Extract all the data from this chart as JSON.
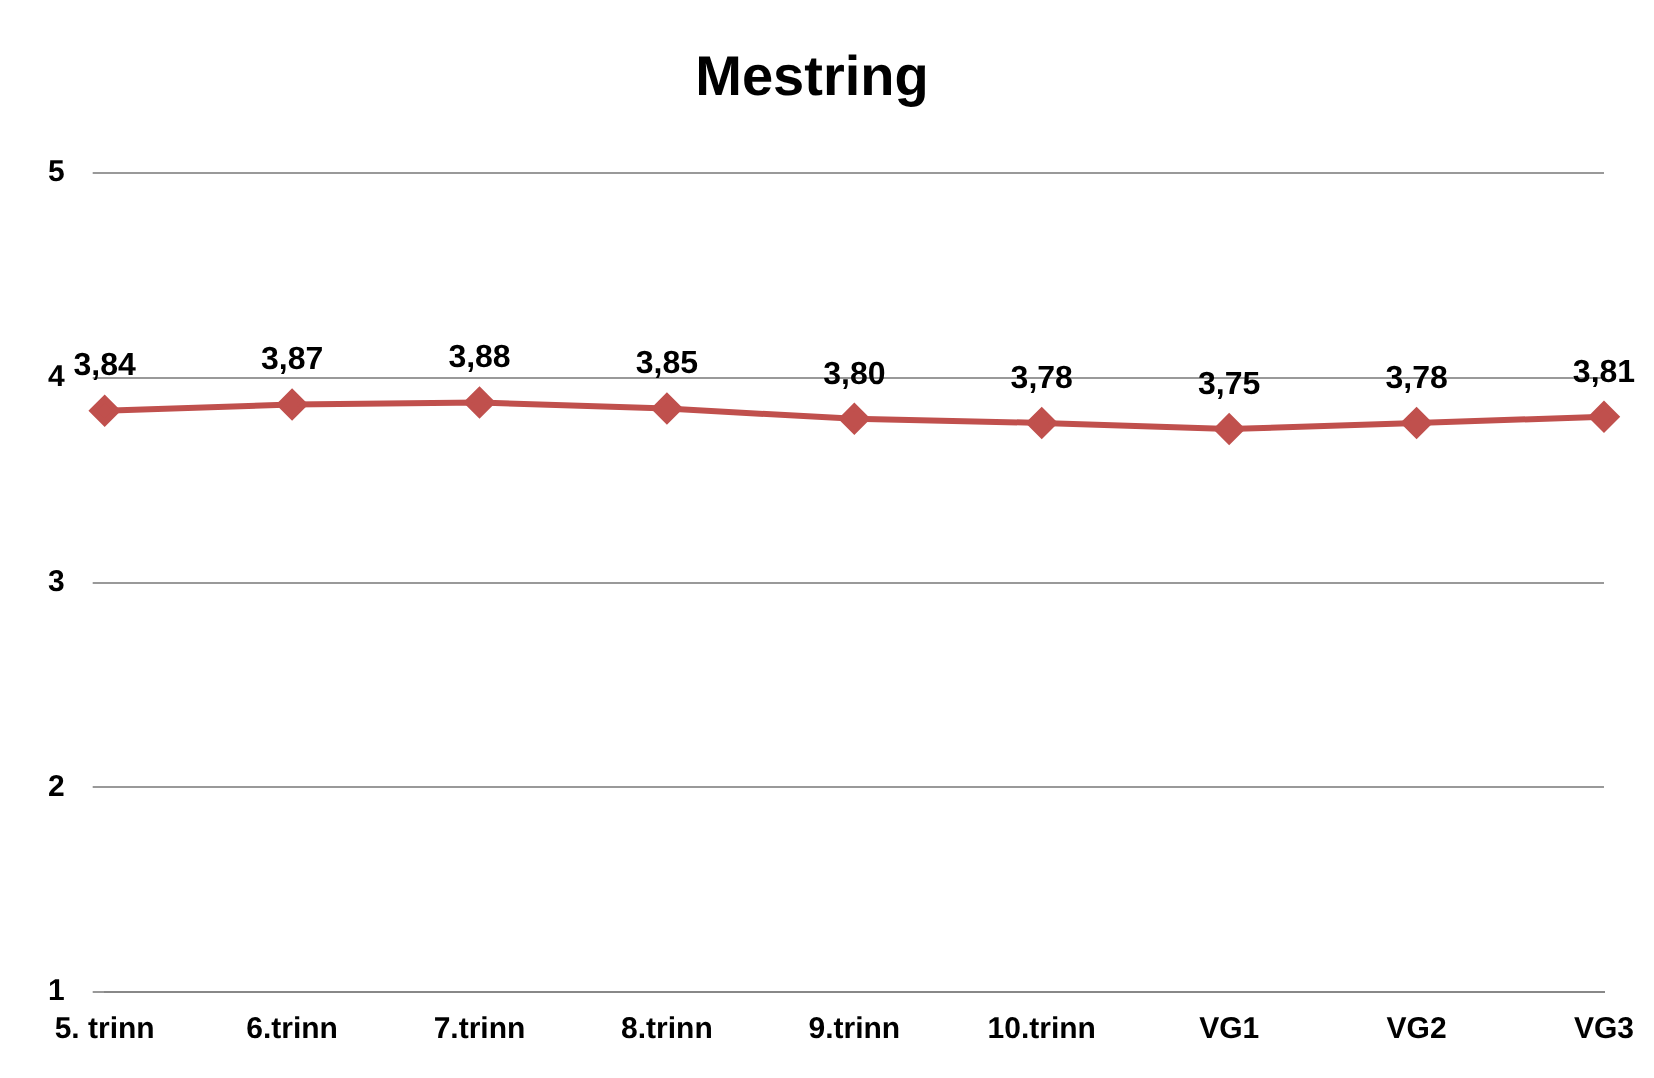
{
  "chart_data": {
    "type": "line",
    "title": "Mestring",
    "categories": [
      "5. trinn",
      "6.trinn",
      "7.trinn",
      "8.trinn",
      "9.trinn",
      "10.trinn",
      "VG1",
      "VG2",
      "VG3"
    ],
    "series": [
      {
        "color": "#c0504d",
        "values": [
          3.84,
          3.87,
          3.88,
          3.85,
          3.8,
          3.78,
          3.75,
          3.78,
          3.81
        ],
        "value_labels": [
          "3,84",
          "3,87",
          "3,88",
          "3,85",
          "3,80",
          "3,78",
          "3,75",
          "3,78",
          "3,81"
        ]
      }
    ],
    "ylim": [
      1,
      5
    ],
    "yticks": [
      1,
      2,
      3,
      4,
      5
    ],
    "grid": "y",
    "legend": false,
    "marker": "diamond",
    "line_style": "solid"
  }
}
